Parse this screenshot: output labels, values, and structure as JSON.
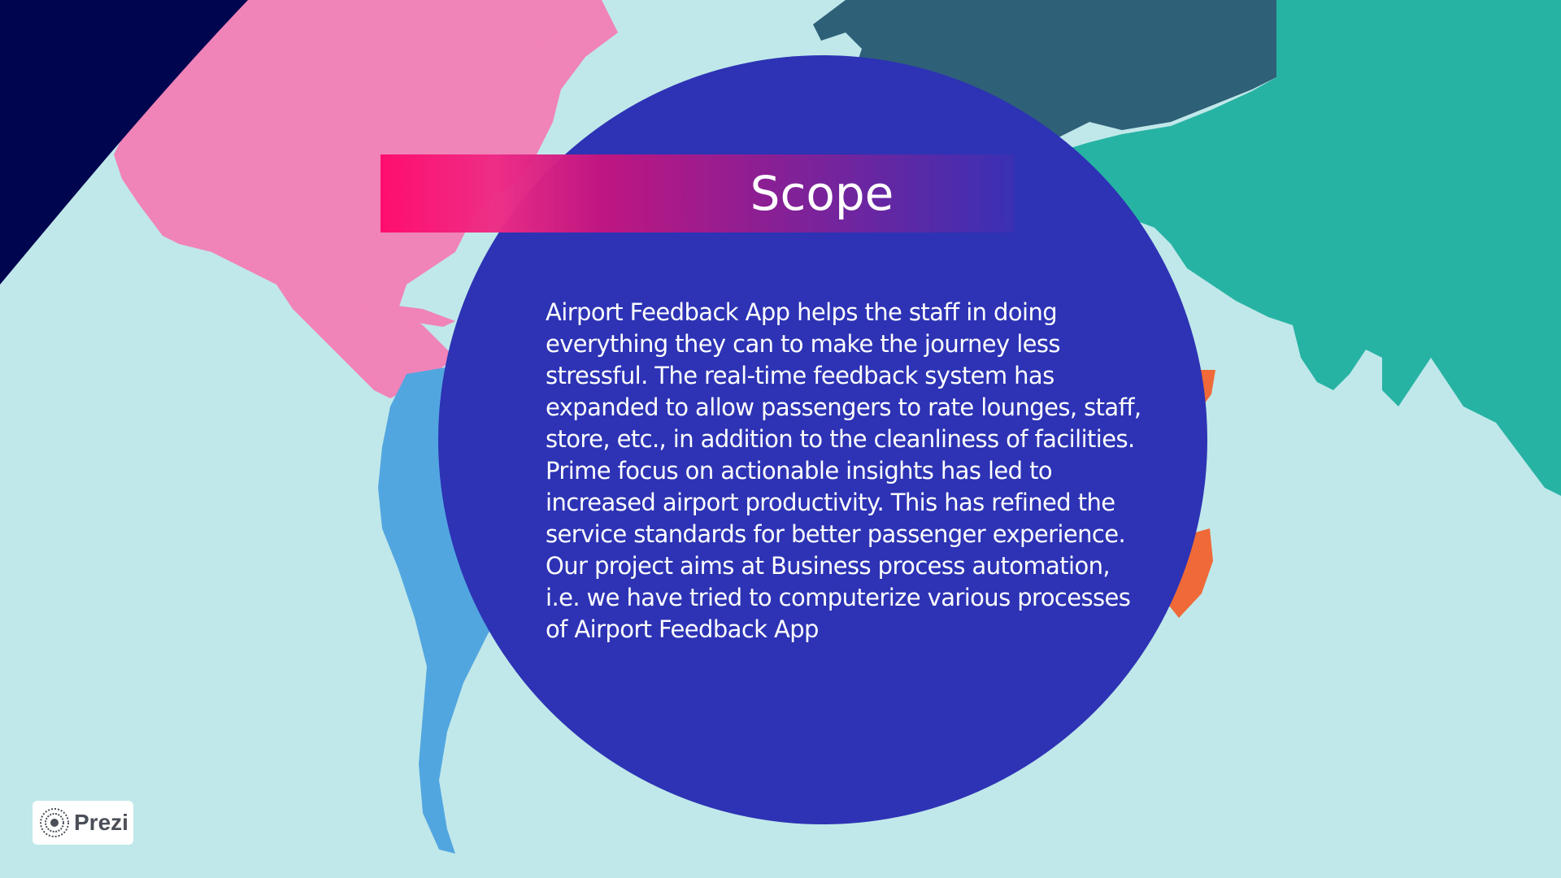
{
  "slide": {
    "title": "Scope",
    "body_paragraphs": [
      "Airport Feedback App helps the staff in doing everything they can to make the journey less stressful. The real-time feedback system has expanded to allow passengers to rate lounges, staff, store, etc., in addition to the cleanliness of facilities. Prime focus on actionable insights has led to increased airport productivity. This has refined the service standards for better passenger experience.",
      "Our project aims at Business process automation, i.e. we have tried to computerize various processes of Airport Feedback App"
    ]
  },
  "branding": {
    "logo_text": "Prezi",
    "logo_icon": "prezi-logo-icon"
  },
  "colors": {
    "ocean": "#c0e8ea",
    "circle": "#2d33b4",
    "north_america": "#f083b8",
    "south_america": "#52a6e0",
    "europe": "#2e6078",
    "asia": "#27b3a4",
    "africa": "#ef6a38",
    "corner_arc": "#000550",
    "title_gradient_start": "#ff0a6c",
    "title_gradient_end": "#3a30b4"
  }
}
